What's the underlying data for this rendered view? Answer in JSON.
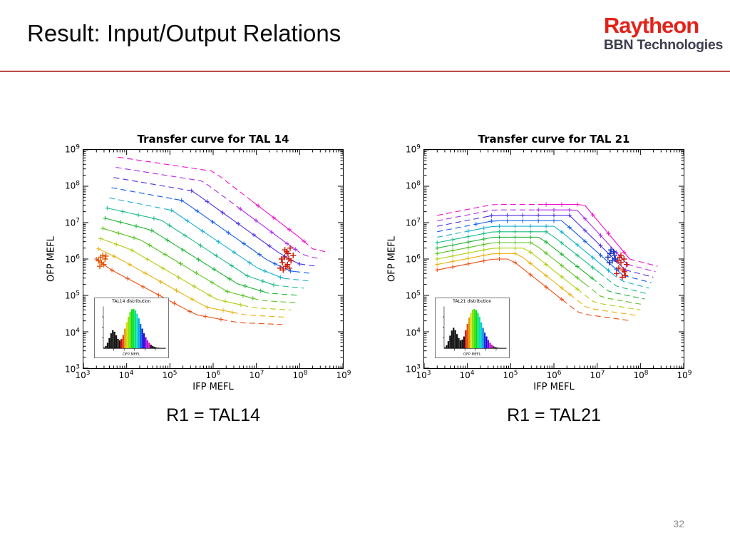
{
  "slide": {
    "title": "Result: Input/Output Relations",
    "page_number": "32",
    "divider_color": "#BE4B48",
    "logo": {
      "line1": "Raytheon",
      "line2": "BBN Technologies",
      "line1_color": "#E2231A",
      "line2_color": "#3E3E4F"
    }
  },
  "captions": {
    "left": "R1 = TAL14",
    "right": "R1 = TAL21"
  },
  "chart_data": [
    {
      "type": "line",
      "title": "Transfer curve for TAL 14",
      "xlabel": "IFP MEFL",
      "ylabel": "OFP MEFL",
      "x_scale": "log10",
      "y_scale": "log10",
      "xlim_log10": [
        3,
        9
      ],
      "ylim_log10": [
        3,
        9
      ],
      "tick_exponents": [
        3,
        4,
        5,
        6,
        7,
        8,
        9
      ],
      "grid": false,
      "legend": null,
      "series": [
        {
          "color": "hsl(16,85%,50%)",
          "solid_log10": [
            3.3,
            6.2
          ],
          "points_log10": [
            [
              3.3,
              6.0
            ],
            [
              3.6,
              5.73
            ],
            [
              4.6,
              5.1
            ],
            [
              5.6,
              4.47
            ],
            [
              6.6,
              4.25
            ],
            [
              7.6,
              4.2
            ]
          ]
        },
        {
          "color": "hsl(45,90%,48%)",
          "solid_log10": [
            3.35,
            6.44
          ],
          "points_log10": [
            [
              3.35,
              6.28
            ],
            [
              3.84,
              6.0
            ],
            [
              4.84,
              5.34
            ],
            [
              5.84,
              4.68
            ],
            [
              6.77,
              4.46
            ],
            [
              7.7,
              4.4
            ]
          ]
        },
        {
          "color": "hsl(70,80%,45%)",
          "solid_log10": [
            3.4,
            6.68
          ],
          "points_log10": [
            [
              3.4,
              6.56
            ],
            [
              4.08,
              6.27
            ],
            [
              5.08,
              5.58
            ],
            [
              6.08,
              4.89
            ],
            [
              6.94,
              4.66
            ],
            [
              7.8,
              4.6
            ]
          ]
        },
        {
          "color": "hsl(100,70%,45%)",
          "solid_log10": [
            3.45,
            6.92
          ],
          "points_log10": [
            [
              3.45,
              6.84
            ],
            [
              4.32,
              6.53
            ],
            [
              5.32,
              5.82
            ],
            [
              6.32,
              5.11
            ],
            [
              7.11,
              4.86
            ],
            [
              7.9,
              4.8
            ]
          ]
        },
        {
          "color": "hsl(130,70%,42%)",
          "solid_log10": [
            3.5,
            7.16
          ],
          "points_log10": [
            [
              3.5,
              7.12
            ],
            [
              4.56,
              6.8
            ],
            [
              5.56,
              6.06
            ],
            [
              6.56,
              5.32
            ],
            [
              7.28,
              5.06
            ],
            [
              8.0,
              5.0
            ]
          ]
        },
        {
          "color": "hsl(160,75%,42%)",
          "solid_log10": [
            3.55,
            7.4
          ],
          "points_log10": [
            [
              3.55,
              7.4
            ],
            [
              4.8,
              7.07
            ],
            [
              5.8,
              6.3
            ],
            [
              6.8,
              5.53
            ],
            [
              7.45,
              5.27
            ],
            [
              8.1,
              5.2
            ]
          ]
        },
        {
          "color": "hsl(190,80%,45%)",
          "solid_log10": [
            4.9,
            7.64
          ],
          "points_log10": [
            [
              3.6,
              7.68
            ],
            [
              5.04,
              7.34
            ],
            [
              6.04,
              6.54
            ],
            [
              7.04,
              5.74
            ],
            [
              7.62,
              5.47
            ],
            [
              8.2,
              5.4
            ]
          ]
        },
        {
          "color": "hsl(220,85%,50%)",
          "solid_log10": [
            5.1,
            7.88
          ],
          "points_log10": [
            [
              3.65,
              7.96
            ],
            [
              5.28,
              7.61
            ],
            [
              6.28,
              6.78
            ],
            [
              7.28,
              5.95
            ],
            [
              7.79,
              5.67
            ],
            [
              8.3,
              5.6
            ]
          ]
        },
        {
          "color": "hsl(250,80%,55%)",
          "solid_log10": [
            5.4,
            8.0
          ],
          "points_log10": [
            [
              3.7,
              8.24
            ],
            [
              5.52,
              7.87
            ],
            [
              6.52,
              7.02
            ],
            [
              7.52,
              6.17
            ],
            [
              7.96,
              5.87
            ],
            [
              8.4,
              5.8
            ]
          ]
        },
        {
          "color": "hsl(280,85%,55%)",
          "solid_log10": [
            6.6,
            7.9
          ],
          "points_log10": [
            [
              3.75,
              8.52
            ],
            [
              5.76,
              8.14
            ],
            [
              6.76,
              7.26
            ],
            [
              7.76,
              6.38
            ],
            [
              8.13,
              6.08
            ],
            [
              8.5,
              6.0
            ]
          ]
        },
        {
          "color": "hsl(310,90%,50%)",
          "solid_log10": [
            6.9,
            8.1
          ],
          "points_log10": [
            [
              3.8,
              8.8
            ],
            [
              6.0,
              8.41
            ],
            [
              7.0,
              7.5
            ],
            [
              8.0,
              6.59
            ],
            [
              8.3,
              6.28
            ],
            [
              8.6,
              6.2
            ]
          ]
        }
      ],
      "clusters": [
        {
          "name": "right-red-cluster",
          "color": "#CC1100",
          "points_log10": [
            [
              7.55,
              5.75
            ],
            [
              7.6,
              5.9
            ],
            [
              7.65,
              6.05
            ],
            [
              7.7,
              6.2
            ],
            [
              7.72,
              5.85
            ],
            [
              7.75,
              6.0
            ],
            [
              7.78,
              6.3
            ],
            [
              7.8,
              5.95
            ],
            [
              7.85,
              6.1
            ],
            [
              7.62,
              5.7
            ],
            [
              7.68,
              5.8
            ],
            [
              7.73,
              6.15
            ],
            [
              7.58,
              6.0
            ],
            [
              7.66,
              6.25
            ],
            [
              7.76,
              5.75
            ]
          ]
        },
        {
          "name": "left-orange-cluster",
          "color": "#E05500",
          "points_log10": [
            [
              3.35,
              5.95
            ],
            [
              3.4,
              6.05
            ],
            [
              3.42,
              5.9
            ],
            [
              3.45,
              6.1
            ],
            [
              3.5,
              6.0
            ],
            [
              3.38,
              5.8
            ],
            [
              3.47,
              5.85
            ],
            [
              3.52,
              6.08
            ]
          ]
        }
      ],
      "inset": {
        "title": "TAL14 distribution",
        "xlabel": "OFP MEFL",
        "bars": [
          0.02,
          0.06,
          0.14,
          0.26,
          0.38,
          0.46,
          0.42,
          0.33,
          0.24,
          0.2,
          0.24,
          0.34,
          0.5,
          0.66,
          0.8,
          0.92,
          0.99,
          1.0,
          0.96,
          0.88,
          0.76,
          0.62,
          0.5,
          0.38,
          0.28,
          0.2,
          0.14,
          0.09,
          0.06,
          0.04,
          0.02,
          0.015,
          0.01,
          0.005,
          0.003,
          0.002
        ],
        "colored_range": [
          10,
          26
        ]
      }
    },
    {
      "type": "line",
      "title": "Transfer curve for TAL 21",
      "xlabel": "IFP MEFL",
      "ylabel": "OFP MEFL",
      "x_scale": "log10",
      "y_scale": "log10",
      "xlim_log10": [
        3,
        9
      ],
      "ylim_log10": [
        3,
        9
      ],
      "tick_exponents": [
        3,
        4,
        5,
        6,
        7,
        8,
        9
      ],
      "grid": false,
      "legend": null,
      "series": [
        {
          "color": "hsl(16,85%,50%)",
          "solid_log10": [
            3.3,
            6.2
          ],
          "points_log10": [
            [
              3.3,
              5.7
            ],
            [
              4.6,
              6.0
            ],
            [
              5.0,
              6.0
            ],
            [
              6.6,
              4.5
            ],
            [
              7.8,
              4.3
            ]
          ]
        },
        {
          "color": "hsl(45,90%,48%)",
          "solid_log10": [
            3.3,
            6.37
          ],
          "points_log10": [
            [
              3.3,
              5.85
            ],
            [
              4.6,
              6.15
            ],
            [
              5.17,
              6.15
            ],
            [
              6.77,
              4.65
            ],
            [
              7.9,
              4.45
            ]
          ]
        },
        {
          "color": "hsl(70,80%,45%)",
          "solid_log10": [
            3.3,
            6.54
          ],
          "points_log10": [
            [
              3.3,
              6.0
            ],
            [
              4.6,
              6.3
            ],
            [
              5.34,
              6.3
            ],
            [
              6.94,
              4.8
            ],
            [
              8.0,
              4.6
            ]
          ]
        },
        {
          "color": "hsl(100,70%,45%)",
          "solid_log10": [
            3.3,
            6.71
          ],
          "points_log10": [
            [
              3.3,
              6.15
            ],
            [
              4.6,
              6.45
            ],
            [
              5.51,
              6.45
            ],
            [
              7.11,
              4.95
            ],
            [
              8.05,
              4.75
            ]
          ]
        },
        {
          "color": "hsl(130,70%,42%)",
          "solid_log10": [
            3.3,
            6.88
          ],
          "points_log10": [
            [
              3.3,
              6.3
            ],
            [
              4.6,
              6.6
            ],
            [
              5.68,
              6.6
            ],
            [
              7.28,
              5.1
            ],
            [
              8.1,
              4.9
            ]
          ]
        },
        {
          "color": "hsl(160,75%,42%)",
          "solid_log10": [
            3.3,
            7.05
          ],
          "points_log10": [
            [
              3.3,
              6.45
            ],
            [
              4.6,
              6.75
            ],
            [
              5.85,
              6.75
            ],
            [
              7.45,
              5.25
            ],
            [
              8.15,
              5.05
            ]
          ]
        },
        {
          "color": "hsl(190,80%,45%)",
          "solid_log10": [
            4.0,
            7.35
          ],
          "points_log10": [
            [
              3.3,
              6.6
            ],
            [
              4.6,
              6.9
            ],
            [
              6.02,
              6.9
            ],
            [
              7.55,
              5.4
            ],
            [
              8.2,
              5.2
            ]
          ]
        },
        {
          "color": "hsl(220,85%,50%)",
          "solid_log10": [
            4.2,
            7.6
          ],
          "points_log10": [
            [
              3.3,
              6.75
            ],
            [
              4.6,
              7.05
            ],
            [
              6.19,
              7.05
            ],
            [
              7.6,
              5.55
            ],
            [
              8.25,
              5.35
            ]
          ]
        },
        {
          "color": "hsl(250,80%,55%)",
          "solid_log10": [
            4.4,
            7.65
          ],
          "points_log10": [
            [
              3.3,
              6.9
            ],
            [
              4.6,
              7.2
            ],
            [
              6.36,
              7.2
            ],
            [
              7.65,
              5.7
            ],
            [
              8.3,
              5.5
            ]
          ]
        },
        {
          "color": "hsl(280,85%,55%)",
          "solid_log10": [
            5.6,
            7.7
          ],
          "points_log10": [
            [
              3.3,
              7.05
            ],
            [
              4.6,
              7.35
            ],
            [
              6.53,
              7.35
            ],
            [
              7.7,
              5.85
            ],
            [
              8.35,
              5.65
            ]
          ]
        },
        {
          "color": "hsl(310,90%,50%)",
          "solid_log10": [
            5.8,
            7.75
          ],
          "points_log10": [
            [
              3.3,
              7.2
            ],
            [
              4.6,
              7.5
            ],
            [
              6.7,
              7.5
            ],
            [
              7.75,
              6.0
            ],
            [
              8.4,
              5.8
            ]
          ]
        }
      ],
      "clusters": [
        {
          "name": "red-cluster",
          "color": "#CC1100",
          "points_log10": [
            [
              7.45,
              5.6
            ],
            [
              7.5,
              5.75
            ],
            [
              7.55,
              5.9
            ],
            [
              7.6,
              5.7
            ],
            [
              7.62,
              6.0
            ],
            [
              7.65,
              5.55
            ],
            [
              7.68,
              5.85
            ],
            [
              7.52,
              6.05
            ],
            [
              7.58,
              5.5
            ],
            [
              7.48,
              5.95
            ],
            [
              7.63,
              5.65
            ],
            [
              7.55,
              6.1
            ]
          ]
        },
        {
          "name": "blue-cluster",
          "color": "#1133BB",
          "points_log10": [
            [
              7.25,
              6.05
            ],
            [
              7.3,
              6.15
            ],
            [
              7.35,
              5.95
            ],
            [
              7.4,
              6.1
            ],
            [
              7.32,
              6.25
            ],
            [
              7.28,
              5.9
            ],
            [
              7.38,
              6.2
            ],
            [
              7.42,
              6.0
            ]
          ]
        }
      ],
      "inset": {
        "title": "TAL21 distribution",
        "xlabel": "OFP MEFL",
        "bars": [
          0.02,
          0.08,
          0.18,
          0.32,
          0.45,
          0.52,
          0.46,
          0.36,
          0.26,
          0.2,
          0.22,
          0.3,
          0.46,
          0.62,
          0.78,
          0.9,
          0.98,
          1.0,
          0.97,
          0.9,
          0.8,
          0.66,
          0.52,
          0.4,
          0.3,
          0.21,
          0.14,
          0.09,
          0.05,
          0.03,
          0.02,
          0.01,
          0.008,
          0.005,
          0.003,
          0.002
        ],
        "colored_range": [
          12,
          27
        ]
      }
    }
  ]
}
